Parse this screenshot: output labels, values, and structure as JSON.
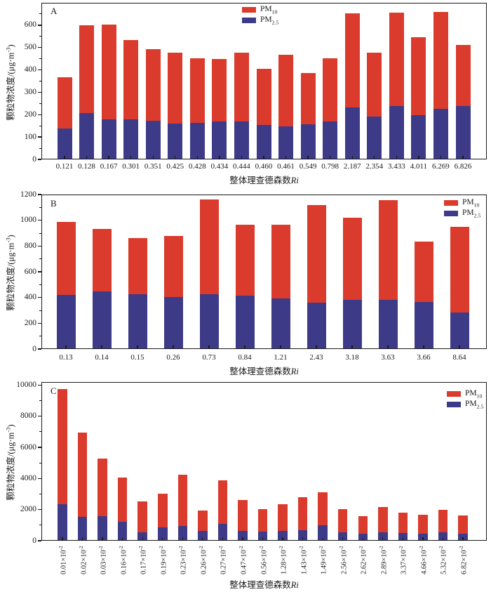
{
  "figure": {
    "accent_red": "#da3b2d",
    "accent_blue": "#3d3a87",
    "axis_color": "#1a1a1a"
  },
  "chart_data": [
    {
      "id": "A",
      "type": "bar",
      "stacked": true,
      "grid": false,
      "panel_label": "A",
      "xlabel": "整体理查德森数",
      "xlabel_italic": "Ri",
      "ylabel": "颗粒物浓度/(μg·m^{-3})",
      "ylim": [
        0,
        700
      ],
      "yticks": [
        0,
        100,
        200,
        300,
        400,
        500,
        600
      ],
      "legend_position": "top-center",
      "legend": [
        {
          "key": "pm10",
          "label": "PM_{10}",
          "color": "#da3b2d"
        },
        {
          "key": "pm25",
          "label": "PM_{2.5}",
          "color": "#3d3a87"
        }
      ],
      "categories": [
        "0.121",
        "0.128",
        "0.167",
        "0.301",
        "0.351",
        "0.425",
        "0.428",
        "0.434",
        "0.444",
        "0.460",
        "0.461",
        "0.549",
        "0.798",
        "2.187",
        "2.354",
        "3.433",
        "4.011",
        "6.269",
        "6.826"
      ],
      "series": [
        {
          "key": "pm25",
          "name": "PM_{2.5}",
          "color": "#3d3a87",
          "stack_index": 0,
          "values": [
            138,
            208,
            178,
            180,
            172,
            159,
            164,
            168,
            170,
            153,
            148,
            157,
            170,
            232,
            190,
            238,
            198,
            227,
            240
          ]
        },
        {
          "key": "pm10",
          "name": "PM_{10}",
          "color": "#da3b2d",
          "stack_index": 1,
          "values": [
            229,
            392,
            426,
            355,
            320,
            318,
            289,
            282,
            307,
            253,
            320,
            228,
            283,
            420,
            287,
            419,
            348,
            432,
            272
          ]
        }
      ],
      "stack_totals": [
        367,
        600,
        604,
        535,
        492,
        477,
        453,
        450,
        477,
        406,
        468,
        385,
        453,
        652,
        477,
        657,
        546,
        659,
        512
      ]
    },
    {
      "id": "B",
      "type": "bar",
      "stacked": true,
      "grid": false,
      "panel_label": "B",
      "xlabel": "整体理查德森数",
      "xlabel_italic": "Ri",
      "ylabel": "颗粒物浓度/(μg·m^{-3})",
      "ylim": [
        0,
        1200
      ],
      "yticks": [
        0,
        200,
        400,
        600,
        800,
        1000,
        1200
      ],
      "legend_position": "top-right",
      "legend": [
        {
          "key": "pm10",
          "label": "PM_{10}",
          "color": "#da3b2d"
        },
        {
          "key": "pm25",
          "label": "PM_{2.5}",
          "color": "#3d3a87"
        }
      ],
      "categories": [
        "0.13",
        "0.14",
        "0.15",
        "0.26",
        "0.73",
        "0.84",
        "1.21",
        "2.43",
        "3.18",
        "3.63",
        "3.66",
        "8.64"
      ],
      "series": [
        {
          "key": "pm25",
          "name": "PM_{2.5}",
          "color": "#3d3a87",
          "stack_index": 0,
          "values": [
            420,
            445,
            428,
            405,
            425,
            415,
            392,
            360,
            382,
            382,
            365,
            285
          ]
        },
        {
          "key": "pm10",
          "name": "PM_{10}",
          "color": "#da3b2d",
          "stack_index": 1,
          "values": [
            565,
            487,
            432,
            473,
            738,
            550,
            571,
            758,
            638,
            776,
            471,
            663
          ]
        }
      ],
      "stack_totals": [
        985,
        932,
        860,
        878,
        1163,
        965,
        963,
        1118,
        1020,
        1158,
        836,
        948
      ]
    },
    {
      "id": "C",
      "type": "bar",
      "stacked": true,
      "grid": false,
      "panel_label": "C",
      "xlabel": "整体理查德森数",
      "xlabel_italic": "Ri",
      "ylabel": "颗粒物浓度/(μg·m^{-3})",
      "ylim": [
        0,
        10200
      ],
      "yticks": [
        0,
        2000,
        4000,
        6000,
        8000,
        10000
      ],
      "legend_position": "top-right",
      "legend": [
        {
          "key": "pm10",
          "label": "PM_{10}",
          "color": "#da3b2d"
        },
        {
          "key": "pm25",
          "label": "PM_{2.5}",
          "color": "#3d3a87"
        }
      ],
      "categories": [
        "0.01×10^{-2}",
        "0.02×10^{-2}",
        "0.03×10^{-2}",
        "0.16×10^{-2}",
        "0.17×10^{-2}",
        "0.19×10^{-2}",
        "0.23×10^{-2}",
        "0.26×10^{-2}",
        "0.27×10^{-2}",
        "0.47×10^{-2}",
        "0.56×10^{-2}",
        "1.28×10^{-2}",
        "1.43×10^{-2}",
        "1.49×10^{-2}",
        "2.56×10^{-2}",
        "2.62×10^{-2}",
        "2.89×10^{-2}",
        "3.37×10^{-2}",
        "4.66×10^{-2}",
        "5.32×10^{-2}",
        "6.82×10^{-2}"
      ],
      "series": [
        {
          "key": "pm25",
          "name": "PM_{2.5}",
          "color": "#3d3a87",
          "stack_index": 0,
          "values": [
            2360,
            1520,
            1580,
            1220,
            560,
            840,
            930,
            620,
            1100,
            650,
            590,
            610,
            660,
            980,
            520,
            460,
            560,
            500,
            460,
            540,
            470
          ]
        },
        {
          "key": "pm10",
          "name": "PM_{10}",
          "color": "#da3b2d",
          "stack_index": 1,
          "values": [
            7390,
            5410,
            3700,
            2850,
            1960,
            2170,
            3320,
            1310,
            2800,
            1950,
            1460,
            1740,
            2140,
            2150,
            1510,
            1120,
            1610,
            1320,
            1210,
            1440,
            1150
          ]
        }
      ],
      "stack_totals": [
        9750,
        6930,
        5280,
        4070,
        2520,
        3010,
        4250,
        1930,
        3900,
        2600,
        2050,
        2350,
        2800,
        3130,
        2030,
        1580,
        2170,
        1820,
        1670,
        1980,
        1620
      ]
    }
  ]
}
